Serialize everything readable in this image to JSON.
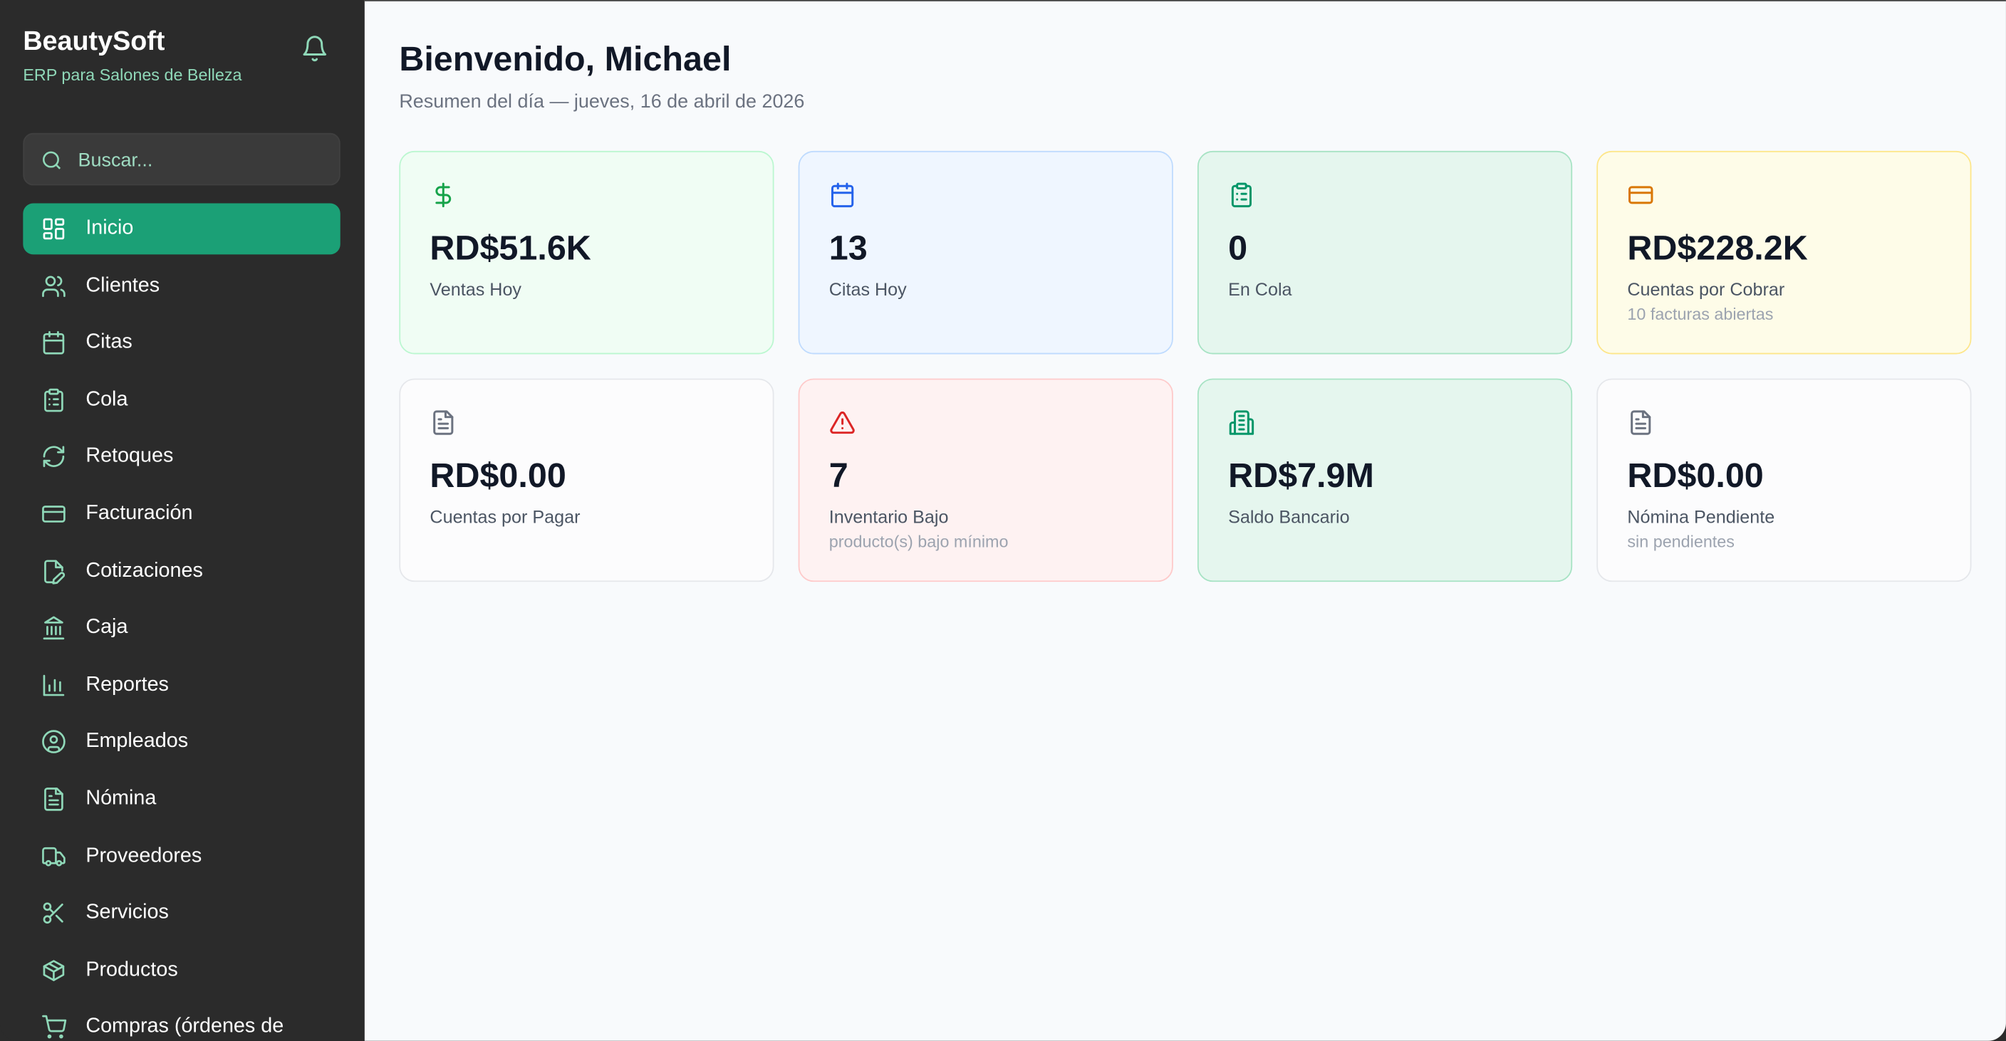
{
  "app": {
    "title": "BeautySoft",
    "subtitle": "ERP para Salones de Belleza"
  },
  "search": {
    "placeholder": "Buscar..."
  },
  "sidebar": {
    "items": [
      {
        "label": "Inicio",
        "icon": "dashboard-icon",
        "active": true
      },
      {
        "label": "Clientes",
        "icon": "users-icon"
      },
      {
        "label": "Citas",
        "icon": "calendar-icon"
      },
      {
        "label": "Cola",
        "icon": "clipboard-icon"
      },
      {
        "label": "Retoques",
        "icon": "refresh-icon"
      },
      {
        "label": "Facturación",
        "icon": "credit-card-icon"
      },
      {
        "label": "Cotizaciones",
        "icon": "file-edit-icon"
      },
      {
        "label": "Caja",
        "icon": "bank-icon"
      },
      {
        "label": "Reportes",
        "icon": "bar-chart-icon"
      },
      {
        "label": "Empleados",
        "icon": "user-circle-icon"
      },
      {
        "label": "Nómina",
        "icon": "file-text-icon"
      },
      {
        "label": "Proveedores",
        "icon": "truck-icon"
      },
      {
        "label": "Servicios",
        "icon": "scissors-icon"
      },
      {
        "label": "Productos",
        "icon": "package-icon"
      },
      {
        "label": "Compras (órdenes de",
        "icon": "cart-icon"
      }
    ]
  },
  "header": {
    "title": "Bienvenido, Michael",
    "subtitle": "Resumen del día — jueves, 16 de abril de 2026"
  },
  "cards": [
    {
      "value": "RD$51.6K",
      "label": "Ventas Hoy",
      "sub": "",
      "icon": "dollar-icon",
      "color": "#16a34a",
      "bg": "#f0fdf4",
      "border": "#bbf7d0"
    },
    {
      "value": "13",
      "label": "Citas Hoy",
      "sub": "",
      "icon": "calendar-icon",
      "color": "#2563eb",
      "bg": "#eff6ff",
      "border": "#bfdbfe"
    },
    {
      "value": "0",
      "label": "En Cola",
      "sub": "",
      "icon": "clipboard-icon",
      "color": "#059669",
      "bg": "#e5f6ee",
      "border": "#a7e3c4"
    },
    {
      "value": "RD$228.2K",
      "label": "Cuentas por Cobrar",
      "sub": "10 facturas abiertas",
      "icon": "credit-card-icon",
      "color": "#d97706",
      "bg": "#fefce8",
      "border": "#fde68a"
    },
    {
      "value": "RD$0.00",
      "label": "Cuentas por Pagar",
      "sub": "",
      "icon": "file-text-icon",
      "color": "#6b7280",
      "bg": "#fcfcfd",
      "border": "#e5e7eb"
    },
    {
      "value": "7",
      "label": "Inventario Bajo",
      "sub": "producto(s) bajo mínimo",
      "icon": "alert-triangle-icon",
      "color": "#dc2626",
      "bg": "#fef2f2",
      "border": "#fecaca"
    },
    {
      "value": "RD$7.9M",
      "label": "Saldo Bancario",
      "sub": "",
      "icon": "building-icon",
      "color": "#059669",
      "bg": "#e5f6ee",
      "border": "#a7e3c4"
    },
    {
      "value": "RD$0.00",
      "label": "Nómina Pendiente",
      "sub": "sin pendientes",
      "icon": "file-text-icon",
      "color": "#6b7280",
      "bg": "#fcfcfd",
      "border": "#e5e7eb"
    }
  ]
}
